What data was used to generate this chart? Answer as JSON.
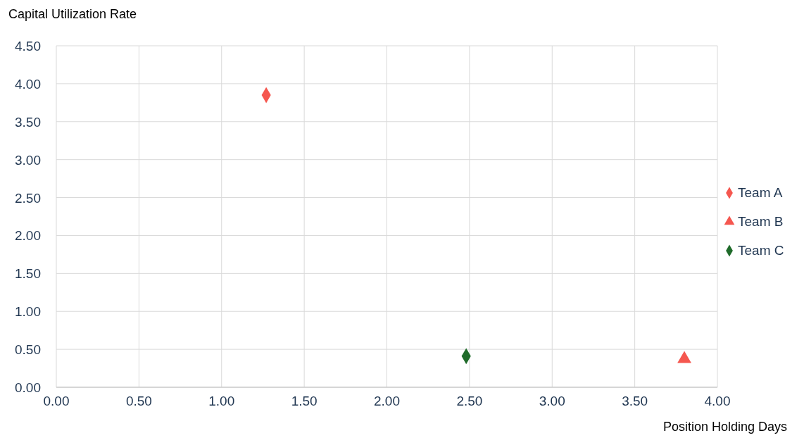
{
  "chart_data": {
    "type": "scatter",
    "ylabel": "Capital Utilization Rate",
    "xlabel": "Position Holding Days",
    "xlim": [
      0,
      4
    ],
    "ylim": [
      0,
      4.5
    ],
    "xticks": [
      {
        "value": 0,
        "label": "0.00"
      },
      {
        "value": 0.5,
        "label": "0.50"
      },
      {
        "value": 1,
        "label": "1.00"
      },
      {
        "value": 1.5,
        "label": "1.50"
      },
      {
        "value": 2,
        "label": "2.00"
      },
      {
        "value": 2.5,
        "label": "2.50"
      },
      {
        "value": 3,
        "label": "3.00"
      },
      {
        "value": 3.5,
        "label": "3.50"
      },
      {
        "value": 4,
        "label": "4.00"
      }
    ],
    "yticks": [
      {
        "value": 0,
        "label": "0.00"
      },
      {
        "value": 0.5,
        "label": "0.50"
      },
      {
        "value": 1,
        "label": "1.00"
      },
      {
        "value": 1.5,
        "label": "1.50"
      },
      {
        "value": 2,
        "label": "2.00"
      },
      {
        "value": 2.5,
        "label": "2.50"
      },
      {
        "value": 3,
        "label": "3.00"
      },
      {
        "value": 3.5,
        "label": "3.50"
      },
      {
        "value": 4,
        "label": "4.00"
      },
      {
        "value": 4.5,
        "label": "4.50"
      }
    ],
    "grid": true,
    "legend": "right",
    "series": [
      {
        "name": "Team A",
        "color": "#f5574f",
        "marker": "diamond",
        "x": [
          1.27
        ],
        "values": [
          3.85
        ]
      },
      {
        "name": "Team B",
        "color": "#f5574f",
        "marker": "triangle",
        "x": [
          3.8
        ],
        "values": [
          0.4
        ]
      },
      {
        "name": "Team C",
        "color": "#1f6b2a",
        "marker": "diamond",
        "x": [
          2.48
        ],
        "values": [
          0.41
        ]
      }
    ]
  }
}
